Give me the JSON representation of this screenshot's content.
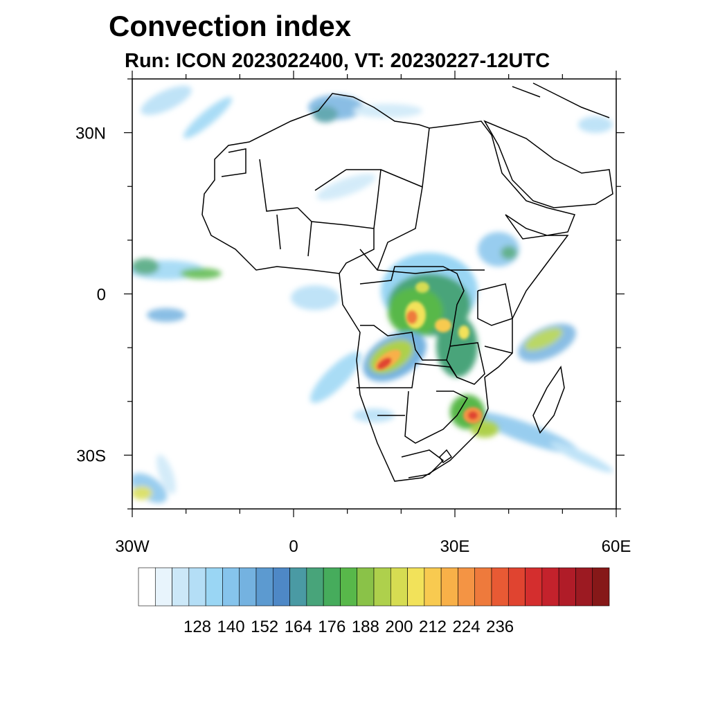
{
  "title": "Convection index",
  "subtitle": "Run: ICON 2023022400,  VT: 20230227-12UTC",
  "map": {
    "lon_range": [
      -30,
      60
    ],
    "lat_range": [
      -40,
      40
    ],
    "x_ticks": [
      {
        "lon": -30,
        "label": "30W"
      },
      {
        "lon": 0,
        "label": "0"
      },
      {
        "lon": 30,
        "label": "30E"
      },
      {
        "lon": 60,
        "label": "60E"
      }
    ],
    "y_ticks": [
      {
        "lat": 30,
        "label": "30N"
      },
      {
        "lat": 0,
        "label": "0"
      },
      {
        "lat": -30,
        "label": "30S"
      }
    ]
  },
  "colorbar": {
    "colors": [
      "#ffffff",
      "#e8f4fc",
      "#cce8f8",
      "#b4def6",
      "#9ad6f4",
      "#86c4ec",
      "#74b2e0",
      "#5c9ad0",
      "#4e88c6",
      "#4a9aa4",
      "#48a47a",
      "#46ac5c",
      "#58b84a",
      "#8ac248",
      "#aed04c",
      "#d6dc52",
      "#f2e25a",
      "#f8ca50",
      "#f8b048",
      "#f49444",
      "#ee7a3c",
      "#e85a34",
      "#e04430",
      "#d42e2e",
      "#c4222c",
      "#b01c28",
      "#9c1a22",
      "#861818"
    ],
    "labels": [
      "128",
      "140",
      "152",
      "164",
      "176",
      "188",
      "200",
      "212",
      "224",
      "236"
    ],
    "label_positions": [
      2,
      4,
      6,
      8,
      10,
      12,
      14,
      16,
      18,
      20
    ]
  }
}
